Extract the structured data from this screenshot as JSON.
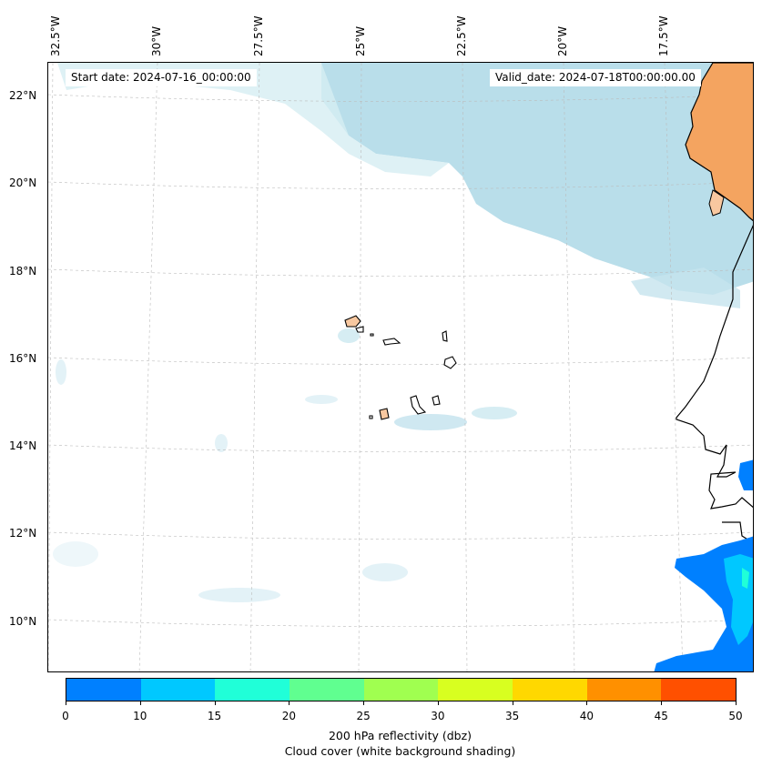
{
  "header": {
    "start_date": "Start date: 2024-07-16_00:00:00",
    "valid_date": "Valid_date: 2024-07-18T00:00:00.00"
  },
  "map": {
    "lon_labels": [
      "32.5°W",
      "30°W",
      "27.5°W",
      "25°W",
      "22.5°W",
      "20°W",
      "17.5°W"
    ],
    "lat_labels": [
      "22°N",
      "20°N",
      "18°N",
      "16°N",
      "14°N",
      "12°N",
      "10°N"
    ],
    "gridlines": "dashed"
  },
  "colorbar": {
    "ticks": [
      "0",
      "10",
      "15",
      "20",
      "25",
      "30",
      "35",
      "40",
      "45",
      "50"
    ],
    "colors": [
      "#0080ff",
      "#00c8ff",
      "#20ffd8",
      "#60ff90",
      "#a0ff50",
      "#d8ff20",
      "#ffd800",
      "#ff9000",
      "#ff5000"
    ],
    "label_line1": "200 hPa reflectivity (dbz)",
    "label_line2": "Cloud cover (white background shading)"
  },
  "colors": {
    "cloud": "#add8e6",
    "land": "#f4a460",
    "island": "#f8c8a0"
  }
}
